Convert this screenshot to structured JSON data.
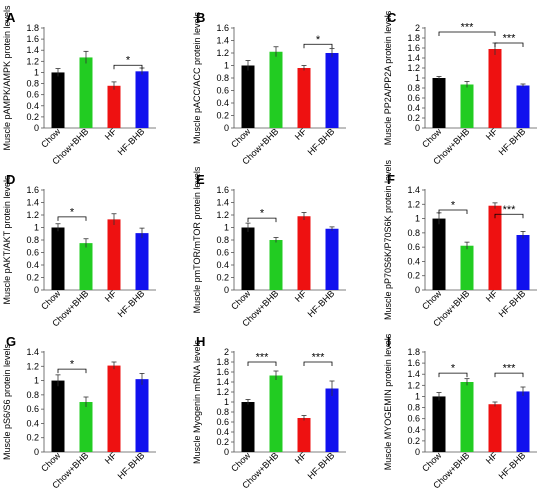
{
  "figure": {
    "groups": [
      "Chow",
      "Chow+BHB",
      "HF",
      "HF-BHB"
    ],
    "colors": [
      "#000000",
      "#22cc22",
      "#ee1111",
      "#1111ee"
    ]
  },
  "chart_data": [
    {
      "type": "bar",
      "panel": "A",
      "categories": [
        "Chow",
        "Chow+BHB",
        "HF",
        "HF-BHB"
      ],
      "values": [
        1.0,
        1.27,
        0.76,
        1.02
      ],
      "errors": [
        0.07,
        0.11,
        0.07,
        0.06
      ],
      "ylabel": "Muscle pAMPK/AMPK  protein levels",
      "ylim": [
        0,
        1.8
      ],
      "yticks": [
        "0",
        "0.2",
        "0.4",
        "0.6",
        "0.8",
        "1",
        "1.2",
        "1.4",
        "1.6",
        "1.8"
      ],
      "significance": [
        {
          "from": 2,
          "to": 3,
          "label": "*",
          "level": 1.13
        }
      ]
    },
    {
      "type": "bar",
      "panel": "B",
      "categories": [
        "Chow",
        "Chow+BHB",
        "HF",
        "HF-BHB"
      ],
      "values": [
        1.0,
        1.22,
        0.96,
        1.2
      ],
      "errors": [
        0.08,
        0.08,
        0.04,
        0.07
      ],
      "ylabel": "Muscle pACC/ACC protein levels",
      "ylim": [
        0,
        1.6
      ],
      "yticks": [
        "0",
        "0.2",
        "0.4",
        "0.6",
        "0.8",
        "1",
        "1.2",
        "1.4",
        "1.6"
      ],
      "significance": [
        {
          "from": 2,
          "to": 3,
          "label": "*",
          "level": 1.34
        }
      ]
    },
    {
      "type": "bar",
      "panel": "C",
      "categories": [
        "Chow",
        "Chow+BHB",
        "HF",
        "HF-BHB"
      ],
      "values": [
        1.0,
        0.87,
        1.58,
        0.85
      ],
      "errors": [
        0.03,
        0.06,
        0.12,
        0.03
      ],
      "ylabel": "Muscle PP2A/PP2A  protein levels",
      "ylim": [
        0,
        2
      ],
      "yticks": [
        "0",
        "0.2",
        "0.4",
        "0.6",
        "0.8",
        "1",
        "1.2",
        "1.4",
        "1.6",
        "1.8",
        "2"
      ],
      "significance": [
        {
          "from": 0,
          "to": 2,
          "label": "***",
          "level": 1.92
        },
        {
          "from": 2,
          "to": 3,
          "label": "***",
          "level": 1.7
        }
      ]
    },
    {
      "type": "bar",
      "panel": "D",
      "categories": [
        "Chow",
        "Chow+BHB",
        "HF",
        "HF-BHB"
      ],
      "values": [
        1.0,
        0.75,
        1.13,
        0.91
      ],
      "errors": [
        0.06,
        0.07,
        0.09,
        0.08
      ],
      "ylabel": "Muscle pAKT/AKT  protein levels",
      "ylim": [
        0,
        1.6
      ],
      "yticks": [
        "0",
        "0.2",
        "0.4",
        "0.6",
        "0.8",
        "1",
        "1.2",
        "1.4",
        "1.6"
      ],
      "significance": [
        {
          "from": 0,
          "to": 1,
          "label": "*",
          "level": 1.17
        }
      ]
    },
    {
      "type": "bar",
      "panel": "E",
      "categories": [
        "Chow",
        "Chow+BHB",
        "HF",
        "HF-BHB"
      ],
      "values": [
        1.0,
        0.8,
        1.18,
        0.98
      ],
      "errors": [
        0.07,
        0.04,
        0.06,
        0.03
      ],
      "ylabel": "Muscle pmTOR/mTOR protein levels",
      "ylim": [
        0,
        1.6
      ],
      "yticks": [
        "0",
        "0.2",
        "0.4",
        "0.6",
        "0.8",
        "1",
        "1.2",
        "1.4",
        "1.6"
      ],
      "significance": [
        {
          "from": 0,
          "to": 1,
          "label": "*",
          "level": 1.15
        }
      ]
    },
    {
      "type": "bar",
      "panel": "F",
      "categories": [
        "Chow",
        "Chow+BHB",
        "HF",
        "HF-BHB"
      ],
      "values": [
        1.0,
        0.62,
        1.18,
        0.77
      ],
      "errors": [
        0.08,
        0.05,
        0.04,
        0.05
      ],
      "ylabel": "Muscle pP70S6K/P70S6K protein levels",
      "ylim": [
        0,
        1.4
      ],
      "yticks": [
        "0",
        "0.2",
        "0.4",
        "0.6",
        "0.8",
        "1",
        "1.2",
        "1.4"
      ],
      "significance": [
        {
          "from": 0,
          "to": 1,
          "label": "*",
          "level": 1.12
        },
        {
          "from": 2,
          "to": 3,
          "label": "***",
          "level": 1.06
        }
      ]
    },
    {
      "type": "bar",
      "panel": "G",
      "categories": [
        "Chow",
        "Chow+BHB",
        "HF",
        "HF-BHB"
      ],
      "values": [
        1.0,
        0.7,
        1.21,
        1.02
      ],
      "errors": [
        0.08,
        0.07,
        0.05,
        0.08
      ],
      "ylabel": "Muscle pS6/S6 protein levels",
      "ylim": [
        0,
        1.4
      ],
      "yticks": [
        "0",
        "0.2",
        "0.4",
        "0.6",
        "0.8",
        "1",
        "1.2",
        "1.4"
      ],
      "significance": [
        {
          "from": 0,
          "to": 1,
          "label": "*",
          "level": 1.16
        }
      ]
    },
    {
      "type": "bar",
      "panel": "H",
      "categories": [
        "Chow",
        "Chow+BHB",
        "HF",
        "HF-BHB"
      ],
      "values": [
        1.0,
        1.53,
        0.68,
        1.27
      ],
      "errors": [
        0.05,
        0.09,
        0.05,
        0.15
      ],
      "ylabel": "Muscle Myogenin mRNA levels",
      "ylim": [
        0,
        2
      ],
      "yticks": [
        "0",
        "0.2",
        "0.4",
        "0.6",
        "0.8",
        "1",
        "1.2",
        "1.4",
        "1.6",
        "1.8",
        "2"
      ],
      "significance": [
        {
          "from": 0,
          "to": 1,
          "label": "***",
          "level": 1.8
        },
        {
          "from": 2,
          "to": 3,
          "label": "***",
          "level": 1.8
        }
      ]
    },
    {
      "type": "bar",
      "panel": "I",
      "categories": [
        "Chow",
        "Chow+BHB",
        "HF",
        "HF-BHB"
      ],
      "values": [
        1.0,
        1.26,
        0.86,
        1.09
      ],
      "errors": [
        0.07,
        0.06,
        0.04,
        0.08
      ],
      "ylabel": "Muscle MYOGEMIN  protein levels",
      "ylim": [
        0,
        1.8
      ],
      "yticks": [
        "0",
        "0.2",
        "0.4",
        "0.6",
        "0.8",
        "1",
        "1.2",
        "1.4",
        "1.6",
        "1.8"
      ],
      "significance": [
        {
          "from": 0,
          "to": 1,
          "label": "*",
          "level": 1.42
        },
        {
          "from": 2,
          "to": 3,
          "label": "***",
          "level": 1.42
        }
      ]
    }
  ]
}
